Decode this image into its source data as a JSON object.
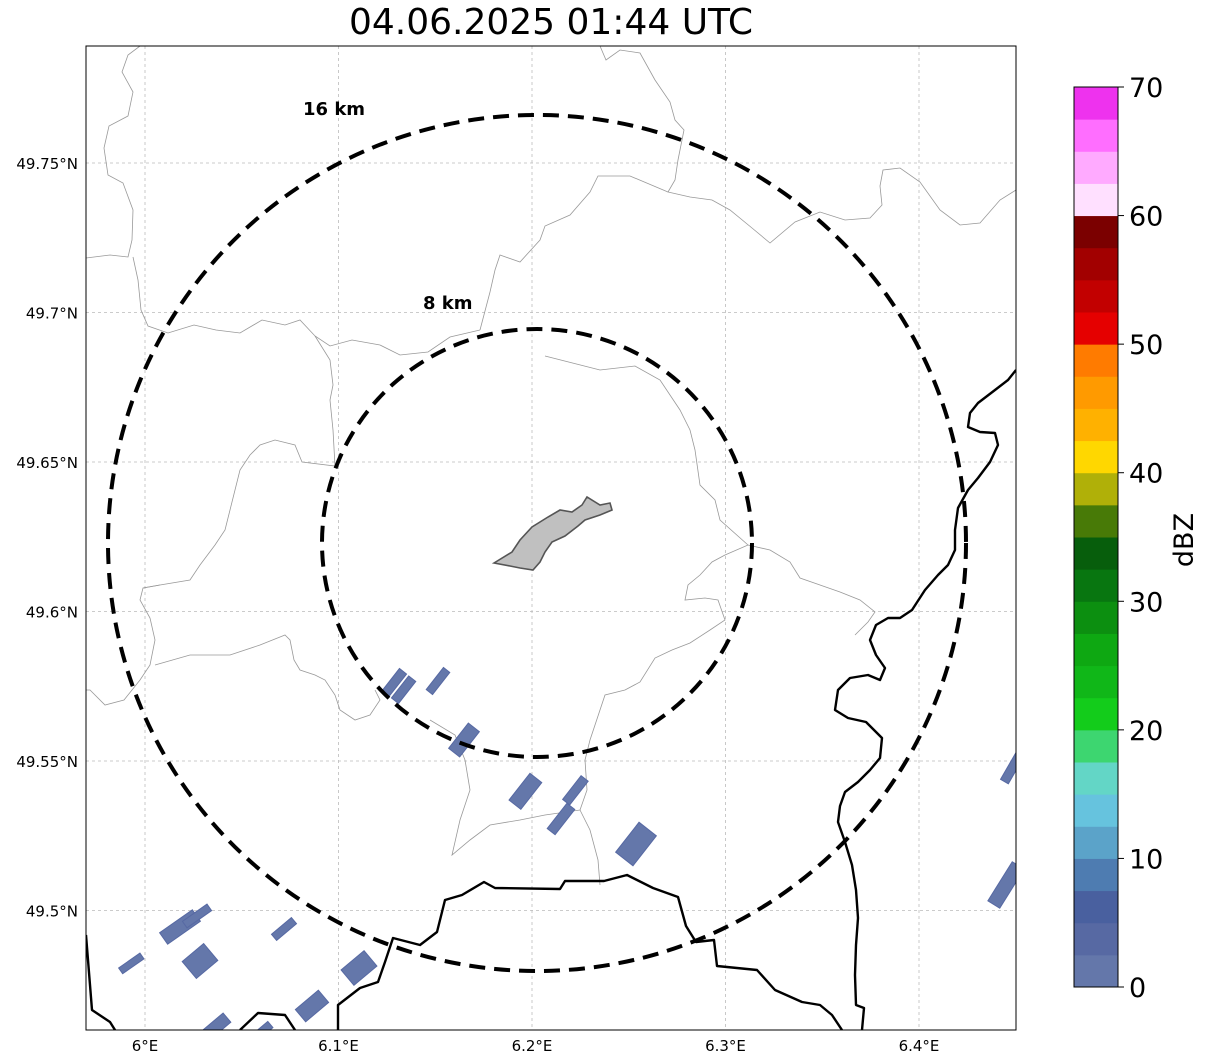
{
  "title": "04.06.2025 01:44 UTC",
  "map": {
    "lon_ticks": [
      {
        "value": 6.0,
        "label": "6°E"
      },
      {
        "value": 6.1,
        "label": "6.1°E"
      },
      {
        "value": 6.2,
        "label": "6.2°E"
      },
      {
        "value": 6.3,
        "label": "6.3°E"
      },
      {
        "value": 6.4,
        "label": "6.4°E"
      }
    ],
    "lat_ticks": [
      {
        "value": 49.75,
        "label": "49.75°N"
      },
      {
        "value": 49.7,
        "label": "49.7°N"
      },
      {
        "value": 49.65,
        "label": "49.65°N"
      },
      {
        "value": 49.6,
        "label": "49.6°N"
      },
      {
        "value": 49.55,
        "label": "49.55°N"
      },
      {
        "value": 49.5,
        "label": "49.5°N"
      }
    ],
    "range_rings": [
      {
        "label": "16 km",
        "radius_km": 16
      },
      {
        "label": "8 km",
        "radius_km": 8
      }
    ]
  },
  "colorbar": {
    "label": "dBZ",
    "ticks": [
      "0",
      "10",
      "20",
      "30",
      "40",
      "50",
      "60",
      "70"
    ],
    "min": 0,
    "max": 70,
    "colors": [
      "#6477aa",
      "#5769a3",
      "#49609f",
      "#4e7cb1",
      "#5ba3c9",
      "#66c3de",
      "#63d6c6",
      "#3dd670",
      "#13cc1b",
      "#10b718",
      "#0ea812",
      "#0c8f10",
      "#087610",
      "#075e0c",
      "#487a07",
      "#b0b008",
      "#ffd700",
      "#ffb100",
      "#ff9a00",
      "#ff7b00",
      "#e50000",
      "#c20000",
      "#a20000",
      "#7b0000",
      "#ffe0ff",
      "#ffaaff",
      "#ff6eff",
      "#ee32ee"
    ]
  }
}
